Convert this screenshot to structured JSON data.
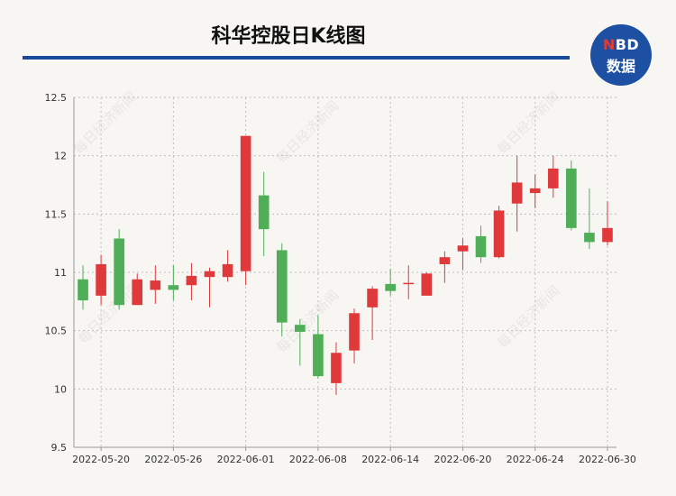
{
  "header": {
    "title": "科华控股日K线图",
    "logo_line1_accent": "N",
    "logo_line1_rest": "BD",
    "logo_line2": "数据"
  },
  "watermark": "每日经济新闻",
  "colors": {
    "up": "#e0393b",
    "down": "#4fae57",
    "brand": "#1d4fa3"
  },
  "chart_data": {
    "type": "candlestick",
    "title": "科华控股日K线图",
    "xlabel": "",
    "ylabel": "",
    "ylim": [
      9.5,
      12.5
    ],
    "yticks": [
      "9.5",
      "10",
      "10.5",
      "11",
      "11.5",
      "12",
      "12.5"
    ],
    "xtick_labels": [
      "2022-05-20",
      "2022-05-26",
      "2022-06-01",
      "2022-06-08",
      "2022-06-14",
      "2022-06-20",
      "2022-06-24",
      "2022-06-30"
    ],
    "xtick_indices": [
      1,
      5,
      9,
      13,
      17,
      21,
      25,
      29
    ],
    "grid": true,
    "candles": [
      {
        "date": "2022-05-19",
        "open": 10.94,
        "close": 10.76,
        "high": 11.06,
        "low": 10.68
      },
      {
        "date": "2022-05-20",
        "open": 10.8,
        "close": 11.07,
        "high": 11.15,
        "low": 10.72
      },
      {
        "date": "2022-05-23",
        "open": 11.29,
        "close": 10.72,
        "high": 11.37,
        "low": 10.68
      },
      {
        "date": "2022-05-24",
        "open": 10.72,
        "close": 10.94,
        "high": 10.99,
        "low": 10.72
      },
      {
        "date": "2022-05-25",
        "open": 10.85,
        "close": 10.93,
        "high": 11.06,
        "low": 10.73
      },
      {
        "date": "2022-05-26",
        "open": 10.89,
        "close": 10.85,
        "high": 11.06,
        "low": 10.76
      },
      {
        "date": "2022-05-27",
        "open": 10.89,
        "close": 10.97,
        "high": 11.08,
        "low": 10.76
      },
      {
        "date": "2022-05-30",
        "open": 10.96,
        "close": 11.01,
        "high": 11.04,
        "low": 10.7
      },
      {
        "date": "2022-05-31",
        "open": 10.96,
        "close": 11.07,
        "high": 11.19,
        "low": 10.92
      },
      {
        "date": "2022-06-01",
        "open": 11.01,
        "close": 12.17,
        "high": 12.17,
        "low": 10.89
      },
      {
        "date": "2022-06-02",
        "open": 11.66,
        "close": 11.37,
        "high": 11.86,
        "low": 11.14
      },
      {
        "date": "2022-06-06",
        "open": 11.19,
        "close": 10.57,
        "high": 11.25,
        "low": 10.45
      },
      {
        "date": "2022-06-07",
        "open": 10.55,
        "close": 10.49,
        "high": 10.6,
        "low": 10.2
      },
      {
        "date": "2022-06-08",
        "open": 10.47,
        "close": 10.11,
        "high": 10.63,
        "low": 10.09
      },
      {
        "date": "2022-06-09",
        "open": 10.05,
        "close": 10.31,
        "high": 10.4,
        "low": 9.95
      },
      {
        "date": "2022-06-10",
        "open": 10.33,
        "close": 10.65,
        "high": 10.69,
        "low": 10.22
      },
      {
        "date": "2022-06-13",
        "open": 10.7,
        "close": 10.86,
        "high": 10.88,
        "low": 10.42
      },
      {
        "date": "2022-06-14",
        "open": 10.9,
        "close": 10.84,
        "high": 11.03,
        "low": 10.8
      },
      {
        "date": "2022-06-15",
        "open": 10.9,
        "close": 10.91,
        "high": 11.06,
        "low": 10.77
      },
      {
        "date": "2022-06-16",
        "open": 10.8,
        "close": 10.99,
        "high": 11.0,
        "low": 10.8
      },
      {
        "date": "2022-06-17",
        "open": 11.07,
        "close": 11.13,
        "high": 11.18,
        "low": 10.91
      },
      {
        "date": "2022-06-20",
        "open": 11.18,
        "close": 11.23,
        "high": 11.29,
        "low": 11.02
      },
      {
        "date": "2022-06-21",
        "open": 11.31,
        "close": 11.13,
        "high": 11.4,
        "low": 11.08
      },
      {
        "date": "2022-06-22",
        "open": 11.13,
        "close": 11.53,
        "high": 11.57,
        "low": 11.12
      },
      {
        "date": "2022-06-23",
        "open": 11.59,
        "close": 11.77,
        "high": 12.0,
        "low": 11.35
      },
      {
        "date": "2022-06-24",
        "open": 11.68,
        "close": 11.72,
        "high": 11.84,
        "low": 11.55
      },
      {
        "date": "2022-06-27",
        "open": 11.72,
        "close": 11.89,
        "high": 12.0,
        "low": 11.64
      },
      {
        "date": "2022-06-28",
        "open": 11.89,
        "close": 11.38,
        "high": 11.96,
        "low": 11.36
      },
      {
        "date": "2022-06-29",
        "open": 11.34,
        "close": 11.26,
        "high": 11.72,
        "low": 11.2
      },
      {
        "date": "2022-06-30",
        "open": 11.26,
        "close": 11.38,
        "high": 11.61,
        "low": 11.23
      }
    ]
  }
}
